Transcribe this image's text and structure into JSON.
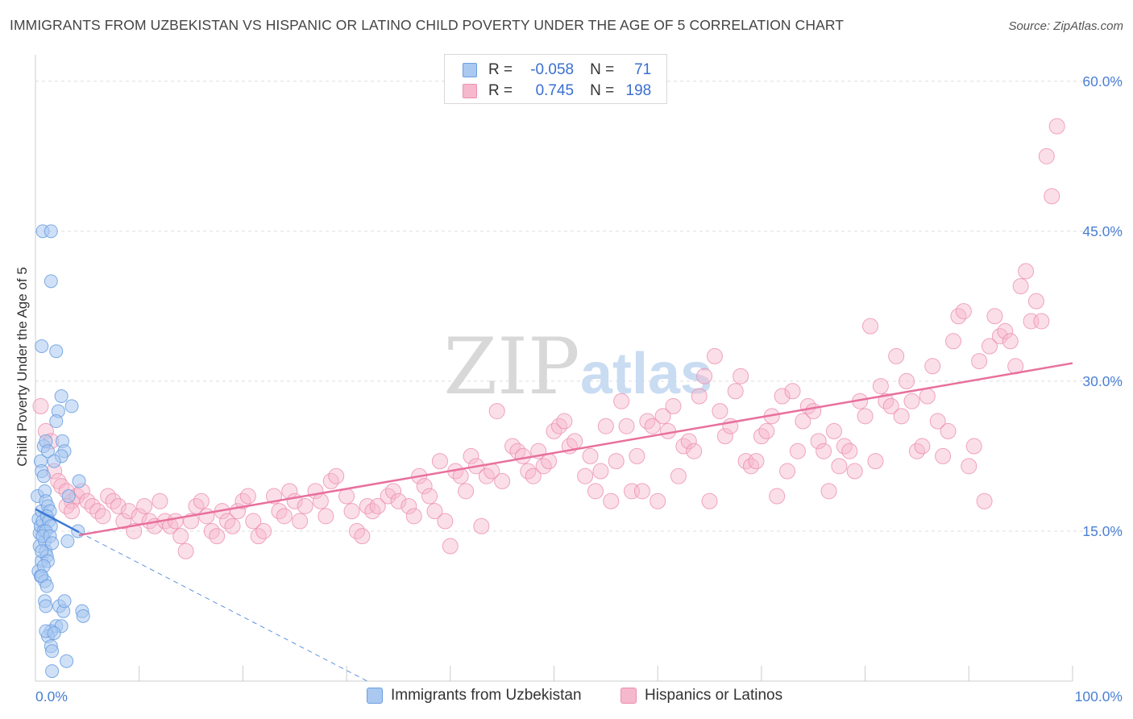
{
  "title": "IMMIGRANTS FROM UZBEKISTAN VS HISPANIC OR LATINO CHILD POVERTY UNDER THE AGE OF 5 CORRELATION CHART",
  "source": "Source: ZipAtlas.com",
  "watermark": {
    "zip": "ZIP",
    "atlas": "atlas"
  },
  "legend": {
    "rows": [
      {
        "r_label": "R =",
        "r_value": "-0.058",
        "n_label": "N =",
        "n_value": "71"
      },
      {
        "r_label": "R =",
        "r_value": "0.745",
        "n_label": "N =",
        "n_value": "198"
      }
    ]
  },
  "colors": {
    "blue_fill": "#aac8f0",
    "blue_stroke": "#6a9ee0",
    "blue_line": "#3a78d8",
    "pink_fill": "#f6b8cc",
    "pink_stroke": "#ec8fb0",
    "pink_line": "#e8709c",
    "tick_text": "#4a7fd4",
    "grid": "#dddddd"
  },
  "chart_data": {
    "type": "scatter",
    "title": "IMMIGRANTS FROM UZBEKISTAN VS HISPANIC OR LATINO CHILD POVERTY UNDER THE AGE OF 5 CORRELATION CHART",
    "xlabel": "",
    "ylabel": "Child Poverty Under the Age of 5",
    "xlim": [
      0,
      100
    ],
    "ylim": [
      0,
      62
    ],
    "x_tick_labels": [
      "0.0%",
      "100.0%"
    ],
    "y_ticks": [
      15,
      30,
      45,
      60
    ],
    "y_tick_labels": [
      "15.0%",
      "30.0%",
      "45.0%",
      "60.0%"
    ],
    "grid": "horizontal dashed",
    "legend_placement": "top-center",
    "series": [
      {
        "name": "Immigrants from Uzbekistan",
        "color": "#aac8f0",
        "points": [
          [
            0.2,
            18.5
          ],
          [
            0.3,
            16.2
          ],
          [
            0.4,
            14.8
          ],
          [
            0.5,
            15.5
          ],
          [
            0.6,
            12.0
          ],
          [
            0.3,
            11.0
          ],
          [
            0.4,
            13.5
          ],
          [
            0.5,
            10.5
          ],
          [
            0.6,
            17.0
          ],
          [
            0.7,
            16.0
          ],
          [
            0.8,
            15.0
          ],
          [
            0.9,
            14.0
          ],
          [
            1.0,
            13.0
          ],
          [
            1.1,
            12.5
          ],
          [
            0.5,
            22.0
          ],
          [
            0.6,
            21.0
          ],
          [
            0.8,
            23.5
          ],
          [
            1.0,
            24.0
          ],
          [
            1.2,
            23.0
          ],
          [
            0.7,
            45.0
          ],
          [
            1.5,
            45.0
          ],
          [
            1.5,
            40.0
          ],
          [
            0.6,
            33.5
          ],
          [
            2.0,
            33.0
          ],
          [
            2.5,
            28.5
          ],
          [
            3.5,
            27.5
          ],
          [
            2.2,
            27.0
          ],
          [
            2.0,
            26.0
          ],
          [
            2.6,
            24.0
          ],
          [
            2.8,
            23.0
          ],
          [
            2.5,
            22.5
          ],
          [
            1.8,
            22.0
          ],
          [
            0.8,
            20.5
          ],
          [
            0.9,
            19.0
          ],
          [
            1.0,
            18.0
          ],
          [
            1.2,
            17.5
          ],
          [
            1.4,
            17.0
          ],
          [
            1.1,
            16.5
          ],
          [
            1.3,
            16.0
          ],
          [
            1.5,
            15.5
          ],
          [
            1.0,
            15.0
          ],
          [
            0.7,
            14.5
          ],
          [
            0.6,
            13.0
          ],
          [
            1.2,
            12.0
          ],
          [
            0.8,
            11.5
          ],
          [
            0.9,
            10.0
          ],
          [
            0.6,
            10.5
          ],
          [
            1.1,
            9.5
          ],
          [
            0.9,
            8.0
          ],
          [
            1.0,
            7.5
          ],
          [
            2.3,
            7.5
          ],
          [
            2.7,
            7.0
          ],
          [
            2.8,
            8.0
          ],
          [
            4.5,
            7.0
          ],
          [
            4.6,
            6.5
          ],
          [
            2.0,
            5.5
          ],
          [
            2.5,
            5.5
          ],
          [
            1.5,
            5.0
          ],
          [
            1.2,
            4.5
          ],
          [
            1.0,
            5.0
          ],
          [
            1.8,
            4.8
          ],
          [
            1.5,
            3.5
          ],
          [
            1.6,
            3.0
          ],
          [
            3.0,
            2.0
          ],
          [
            1.6,
            1.0
          ],
          [
            4.1,
            15.0
          ],
          [
            3.1,
            14.0
          ],
          [
            3.2,
            18.5
          ],
          [
            4.2,
            20.0
          ],
          [
            1.4,
            14.5
          ],
          [
            1.6,
            13.8
          ]
        ]
      },
      {
        "name": "Hispanics or Latinos",
        "color": "#f6b8cc",
        "points": [
          [
            0.5,
            27.5
          ],
          [
            1.0,
            25.0
          ],
          [
            1.5,
            24.0
          ],
          [
            1.8,
            21.0
          ],
          [
            2.2,
            20.0
          ],
          [
            2.5,
            19.5
          ],
          [
            3.0,
            19.0
          ],
          [
            3.5,
            18.0
          ],
          [
            3.0,
            17.5
          ],
          [
            3.5,
            17.0
          ],
          [
            4.0,
            18.5
          ],
          [
            4.5,
            19.0
          ],
          [
            5.0,
            18.0
          ],
          [
            5.5,
            17.5
          ],
          [
            6.0,
            17.0
          ],
          [
            6.5,
            16.5
          ],
          [
            7.0,
            18.5
          ],
          [
            7.5,
            18.0
          ],
          [
            8.0,
            17.5
          ],
          [
            8.5,
            16.0
          ],
          [
            9.0,
            17.0
          ],
          [
            9.5,
            15.0
          ],
          [
            10.0,
            16.5
          ],
          [
            10.5,
            17.5
          ],
          [
            11.0,
            16.0
          ],
          [
            11.5,
            15.5
          ],
          [
            12.0,
            18.0
          ],
          [
            12.5,
            16.0
          ],
          [
            13.0,
            15.5
          ],
          [
            13.5,
            16.0
          ],
          [
            14.0,
            14.5
          ],
          [
            14.5,
            13.0
          ],
          [
            15.0,
            16.0
          ],
          [
            15.5,
            17.5
          ],
          [
            16.0,
            18.0
          ],
          [
            16.5,
            16.5
          ],
          [
            17.0,
            15.0
          ],
          [
            17.5,
            14.5
          ],
          [
            18.0,
            17.0
          ],
          [
            18.5,
            16.0
          ],
          [
            19.0,
            15.5
          ],
          [
            19.5,
            17.0
          ],
          [
            20.0,
            18.0
          ],
          [
            20.5,
            18.5
          ],
          [
            21.0,
            16.0
          ],
          [
            21.5,
            14.5
          ],
          [
            22.0,
            15.0
          ],
          [
            23.0,
            18.5
          ],
          [
            23.5,
            17.0
          ],
          [
            24.0,
            16.5
          ],
          [
            24.5,
            19.0
          ],
          [
            25.0,
            18.0
          ],
          [
            25.5,
            16.0
          ],
          [
            26.0,
            17.5
          ],
          [
            27.0,
            19.0
          ],
          [
            27.5,
            18.0
          ],
          [
            28.0,
            16.5
          ],
          [
            28.5,
            20.0
          ],
          [
            29.0,
            20.5
          ],
          [
            30.0,
            18.5
          ],
          [
            30.5,
            17.0
          ],
          [
            31.0,
            15.0
          ],
          [
            31.5,
            14.5
          ],
          [
            32.0,
            17.5
          ],
          [
            32.5,
            17.0
          ],
          [
            33.0,
            17.5
          ],
          [
            34.0,
            18.5
          ],
          [
            34.5,
            19.0
          ],
          [
            35.0,
            18.0
          ],
          [
            36.0,
            17.5
          ],
          [
            36.5,
            16.5
          ],
          [
            37.0,
            20.5
          ],
          [
            37.5,
            19.5
          ],
          [
            38.0,
            18.5
          ],
          [
            38.5,
            17.0
          ],
          [
            39.0,
            22.0
          ],
          [
            39.5,
            16.0
          ],
          [
            40.0,
            13.5
          ],
          [
            40.5,
            21.0
          ],
          [
            41.0,
            20.5
          ],
          [
            41.5,
            19.0
          ],
          [
            42.0,
            22.5
          ],
          [
            42.5,
            21.5
          ],
          [
            43.0,
            15.5
          ],
          [
            43.5,
            20.5
          ],
          [
            44.0,
            21.0
          ],
          [
            44.5,
            27.0
          ],
          [
            45.0,
            20.0
          ],
          [
            46.0,
            23.5
          ],
          [
            46.5,
            23.0
          ],
          [
            47.0,
            22.5
          ],
          [
            47.5,
            21.0
          ],
          [
            48.0,
            20.5
          ],
          [
            48.5,
            23.0
          ],
          [
            49.0,
            21.5
          ],
          [
            49.5,
            22.0
          ],
          [
            50.0,
            25.0
          ],
          [
            50.5,
            25.5
          ],
          [
            51.0,
            26.0
          ],
          [
            51.5,
            23.5
          ],
          [
            52.0,
            24.0
          ],
          [
            53.0,
            20.5
          ],
          [
            53.5,
            22.5
          ],
          [
            54.0,
            19.0
          ],
          [
            54.5,
            21.0
          ],
          [
            55.0,
            25.5
          ],
          [
            55.5,
            18.0
          ],
          [
            56.0,
            22.0
          ],
          [
            56.5,
            28.0
          ],
          [
            57.0,
            25.5
          ],
          [
            57.5,
            19.0
          ],
          [
            58.0,
            22.5
          ],
          [
            58.5,
            19.0
          ],
          [
            59.0,
            26.0
          ],
          [
            59.5,
            25.5
          ],
          [
            60.0,
            18.0
          ],
          [
            60.5,
            26.5
          ],
          [
            61.0,
            25.0
          ],
          [
            61.5,
            27.5
          ],
          [
            62.0,
            20.5
          ],
          [
            62.5,
            23.5
          ],
          [
            63.0,
            24.0
          ],
          [
            63.5,
            23.0
          ],
          [
            64.0,
            28.5
          ],
          [
            64.5,
            30.5
          ],
          [
            65.0,
            18.0
          ],
          [
            65.5,
            32.5
          ],
          [
            66.0,
            27.0
          ],
          [
            66.5,
            24.5
          ],
          [
            67.0,
            25.5
          ],
          [
            67.5,
            29.0
          ],
          [
            68.0,
            30.5
          ],
          [
            68.5,
            22.0
          ],
          [
            69.0,
            21.5
          ],
          [
            69.5,
            22.0
          ],
          [
            70.0,
            24.5
          ],
          [
            70.5,
            25.0
          ],
          [
            71.0,
            26.5
          ],
          [
            71.5,
            18.5
          ],
          [
            72.0,
            28.5
          ],
          [
            72.5,
            21.0
          ],
          [
            73.0,
            29.0
          ],
          [
            73.5,
            23.0
          ],
          [
            74.0,
            26.0
          ],
          [
            74.5,
            27.5
          ],
          [
            75.0,
            27.0
          ],
          [
            75.5,
            24.0
          ],
          [
            76.0,
            23.0
          ],
          [
            76.5,
            19.0
          ],
          [
            77.0,
            25.0
          ],
          [
            77.5,
            21.5
          ],
          [
            78.0,
            23.5
          ],
          [
            78.5,
            23.0
          ],
          [
            79.0,
            21.0
          ],
          [
            79.5,
            28.0
          ],
          [
            80.0,
            26.5
          ],
          [
            80.5,
            35.5
          ],
          [
            81.0,
            22.0
          ],
          [
            81.5,
            29.5
          ],
          [
            82.0,
            28.0
          ],
          [
            82.5,
            27.5
          ],
          [
            83.0,
            32.5
          ],
          [
            83.5,
            26.5
          ],
          [
            84.0,
            30.0
          ],
          [
            84.5,
            28.0
          ],
          [
            85.0,
            23.0
          ],
          [
            85.5,
            23.5
          ],
          [
            86.0,
            28.5
          ],
          [
            86.5,
            31.5
          ],
          [
            87.0,
            26.0
          ],
          [
            87.5,
            22.5
          ],
          [
            88.0,
            25.0
          ],
          [
            88.5,
            34.0
          ],
          [
            89.0,
            36.5
          ],
          [
            89.5,
            37.0
          ],
          [
            90.0,
            21.5
          ],
          [
            90.5,
            23.5
          ],
          [
            91.0,
            32.0
          ],
          [
            91.5,
            18.0
          ],
          [
            92.0,
            33.5
          ],
          [
            92.5,
            36.5
          ],
          [
            93.0,
            34.5
          ],
          [
            93.5,
            35.0
          ],
          [
            94.0,
            34.0
          ],
          [
            94.5,
            31.5
          ],
          [
            95.0,
            39.5
          ],
          [
            95.5,
            41.0
          ],
          [
            96.0,
            36.0
          ],
          [
            96.5,
            38.0
          ],
          [
            97.0,
            36.0
          ],
          [
            97.5,
            52.5
          ],
          [
            98.0,
            48.5
          ],
          [
            98.5,
            55.5
          ]
        ]
      }
    ],
    "trend_lines": [
      {
        "series": "Immigrants from Uzbekistan",
        "solid": [
          [
            0,
            17.2
          ],
          [
            4.2,
            14.9
          ]
        ],
        "dashed": [
          [
            4.2,
            14.9
          ],
          [
            32,
            0
          ]
        ]
      },
      {
        "series": "Hispanics or Latinos",
        "solid": [
          [
            4.2,
            14.6
          ],
          [
            100,
            31.8
          ]
        ]
      }
    ]
  }
}
